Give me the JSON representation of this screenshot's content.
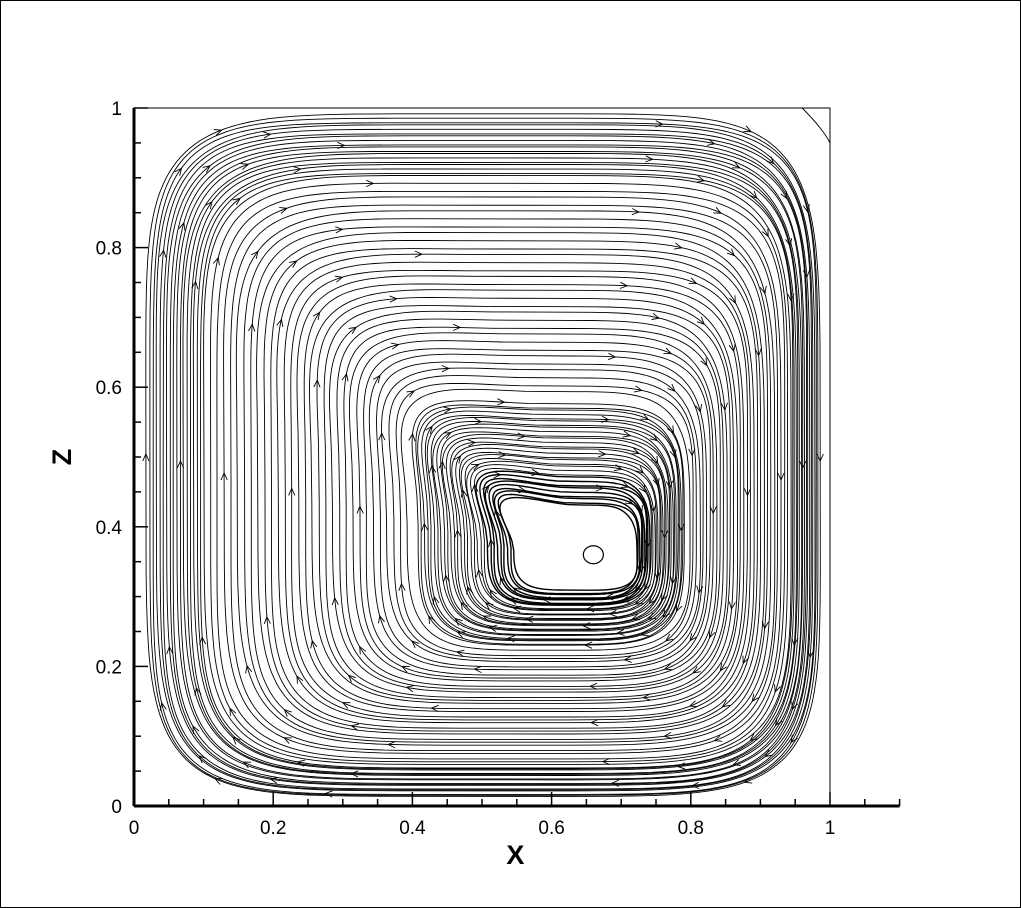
{
  "chart_data": {
    "type": "streamline",
    "title": "",
    "xlabel": "X",
    "ylabel": "Z",
    "xlim": [
      0,
      1.1
    ],
    "ylim": [
      0,
      1
    ],
    "xticks": [
      {
        "value": 0,
        "label": "0"
      },
      {
        "value": 0.2,
        "label": "0.2"
      },
      {
        "value": 0.4,
        "label": "0.4"
      },
      {
        "value": 0.6,
        "label": "0.6"
      },
      {
        "value": 0.8,
        "label": "0.8"
      },
      {
        "value": 1,
        "label": "1"
      }
    ],
    "yticks": [
      {
        "value": 0,
        "label": "0"
      },
      {
        "value": 0.2,
        "label": "0.2"
      },
      {
        "value": 0.4,
        "label": "0.4"
      },
      {
        "value": 0.6,
        "label": "0.6"
      },
      {
        "value": 0.8,
        "label": "0.8"
      },
      {
        "value": 1,
        "label": "1"
      }
    ],
    "domain_box": {
      "x": [
        0,
        1
      ],
      "z": [
        0,
        1
      ]
    },
    "vortex_center": {
      "x": 0.66,
      "z": 0.36
    },
    "flow_direction": "clockwise",
    "grid": false,
    "legend": "none",
    "line_color": "#000000"
  }
}
